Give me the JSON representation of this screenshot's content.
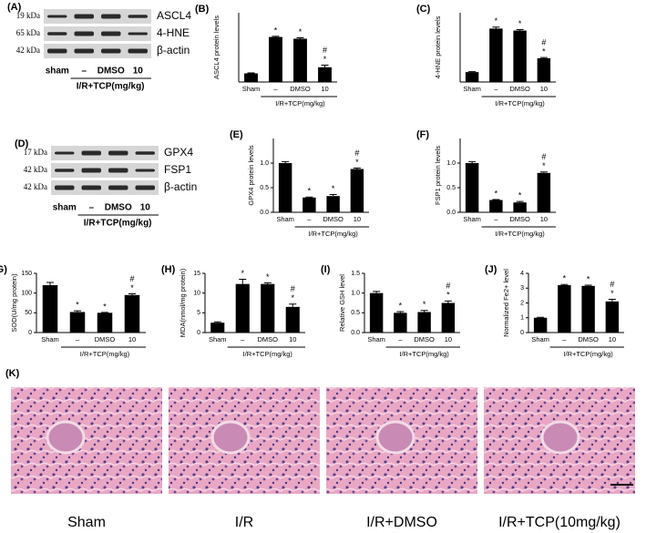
{
  "chart_data": [
    {
      "type": "bar",
      "panel": "(B)",
      "ylabel": "ASCL4 protein levels",
      "categories": [
        "Sham",
        "–",
        "DMSO",
        "10"
      ],
      "group_label": "I/R+TCP(mg/kg)",
      "values": [
        1.0,
        5.2,
        5.0,
        1.7
      ],
      "errors": [
        0.05,
        0.07,
        0.1,
        0.25
      ],
      "markers": [
        null,
        [
          "*"
        ],
        [
          "*"
        ],
        [
          "#",
          "*"
        ]
      ],
      "ylim": [
        0,
        8
      ],
      "color": "#000000"
    },
    {
      "type": "bar",
      "panel": "(C)",
      "ylabel": "4-HNE protein levels",
      "categories": [
        "Sham",
        "–",
        "DMSO",
        "10"
      ],
      "group_label": "I/R+TCP(mg/kg)",
      "values": [
        1.0,
        5.4,
        5.2,
        2.4
      ],
      "errors": [
        0.05,
        0.15,
        0.1,
        0.07
      ],
      "markers": [
        null,
        [
          "*"
        ],
        [
          "*"
        ],
        [
          "#",
          "*"
        ]
      ],
      "ylim": [
        0,
        7
      ],
      "color": "#000000"
    },
    {
      "type": "bar",
      "panel": "(E)",
      "ylabel": "GPX4 protein levels",
      "categories": [
        "Sham",
        "–",
        "DMSO",
        "10"
      ],
      "group_label": "I/R+TCP(mg/kg)",
      "values": [
        1.0,
        0.3,
        0.33,
        0.88
      ],
      "errors": [
        0.03,
        0.01,
        0.03,
        0.02
      ],
      "markers": [
        null,
        [
          "*"
        ],
        [
          "*"
        ],
        [
          "#",
          "*"
        ]
      ],
      "ylim": [
        0,
        1.5
      ],
      "yticks": [
        {
          "value": 0,
          "label": "0.0"
        },
        {
          "value": 0.5,
          "label": "0.5"
        },
        {
          "value": 1,
          "label": "1.0"
        }
      ],
      "color": "#000000"
    },
    {
      "type": "bar",
      "panel": "(F)",
      "ylabel": "FSP1 protein levels",
      "categories": [
        "Sham",
        "–",
        "DMSO",
        "10"
      ],
      "group_label": "I/R+TCP(mg/kg)",
      "values": [
        1.0,
        0.25,
        0.2,
        0.8
      ],
      "errors": [
        0.03,
        0.01,
        0.02,
        0.02
      ],
      "markers": [
        null,
        [
          "*"
        ],
        [
          "*"
        ],
        [
          "#",
          "*"
        ]
      ],
      "ylim": [
        0,
        1.5
      ],
      "yticks": [
        {
          "value": 0,
          "label": "0.0"
        },
        {
          "value": 0.5,
          "label": "0.5"
        },
        {
          "value": 1,
          "label": "1.0"
        }
      ],
      "color": "#000000"
    },
    {
      "type": "bar",
      "panel": "(G)",
      "ylabel": "SOD(U/mg protein)",
      "categories": [
        "Sham",
        "–",
        "DMSO",
        "10"
      ],
      "group_label": "I/R+TCP(mg/kg)",
      "values": [
        120,
        52,
        50,
        95
      ],
      "errors": [
        7,
        3,
        1,
        3
      ],
      "markers": [
        null,
        [
          "*"
        ],
        [
          "*"
        ],
        [
          "#",
          "*"
        ]
      ],
      "ylim": [
        0,
        150
      ],
      "yticks": [
        0,
        50,
        100,
        150
      ],
      "color": "#000000"
    },
    {
      "type": "bar",
      "panel": "(H)",
      "ylabel": "MDA(nmol/mg protein)",
      "categories": [
        "Sham",
        "–",
        "DMSO",
        "10"
      ],
      "group_label": "I/R+TCP(mg/kg)",
      "values": [
        2.5,
        12.3,
        12.3,
        6.5
      ],
      "errors": [
        0.2,
        1.2,
        0.3,
        0.7
      ],
      "markers": [
        null,
        [
          "*"
        ],
        [
          "*"
        ],
        [
          "#",
          "*"
        ]
      ],
      "ylim": [
        0,
        15
      ],
      "yticks": [
        0,
        5,
        10,
        15
      ],
      "color": "#000000"
    },
    {
      "type": "bar",
      "panel": "(I)",
      "ylabel": "Relative GSH level",
      "categories": [
        "Sham",
        "–",
        "DMSO",
        "10"
      ],
      "group_label": "I/R+TCP(mg/kg)",
      "values": [
        1.0,
        0.5,
        0.52,
        0.75
      ],
      "errors": [
        0.04,
        0.03,
        0.04,
        0.05
      ],
      "markers": [
        null,
        [
          "*"
        ],
        [
          "*"
        ],
        [
          "#",
          "*"
        ]
      ],
      "ylim": [
        0,
        1.5
      ],
      "yticks": [
        {
          "value": 0,
          "label": "0.0"
        },
        {
          "value": 0.5,
          "label": "0.5"
        },
        {
          "value": 1,
          "label": "1.0"
        },
        {
          "value": 1.5,
          "label": "1.5"
        }
      ],
      "color": "#000000"
    },
    {
      "type": "bar",
      "panel": "(J)",
      "ylabel": "Normalized Fe2+ level",
      "categories": [
        "Sham",
        "–",
        "DMSO",
        "10"
      ],
      "group_label": "I/R+TCP(mg/kg)",
      "values": [
        1.0,
        3.2,
        3.15,
        2.1
      ],
      "errors": [
        0.03,
        0.05,
        0.05,
        0.15
      ],
      "markers": [
        null,
        [
          "*"
        ],
        [
          "*"
        ],
        [
          "#",
          "*"
        ]
      ],
      "ylim": [
        0,
        4
      ],
      "yticks": [
        0,
        1,
        2,
        3,
        4
      ],
      "color": "#000000"
    }
  ],
  "blots": [
    {
      "panel": "(A)",
      "kda": [
        "19 kDa",
        "65 kDa",
        "42 kDa"
      ],
      "proteins": [
        "ASCL4",
        "4-HNE",
        "β-actin"
      ],
      "lanes": [
        "sham",
        "–",
        "DMSO",
        "10"
      ],
      "group_label": "I/R+TCP(mg/kg)"
    },
    {
      "panel": "(D)",
      "kda": [
        "17 kDa",
        "42 kDa",
        "42 kDa"
      ],
      "proteins": [
        "GPX4",
        "FSP1",
        "β-actin"
      ],
      "lanes": [
        "sham",
        "–",
        "DMSO",
        "10"
      ],
      "group_label": "I/R+TCP(mg/kg)"
    }
  ],
  "histology": {
    "panel": "(K)",
    "captions": [
      "Sham",
      "I/R",
      "I/R+DMSO",
      "I/R+TCP(10mg/kg)"
    ]
  }
}
